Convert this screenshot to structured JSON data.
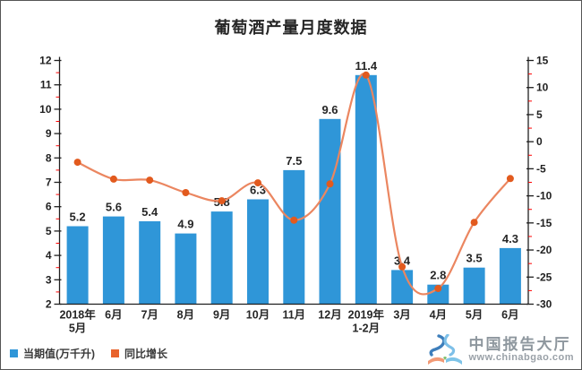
{
  "title": "葡萄酒产量月度数据",
  "colors": {
    "bar": "#2F96D8",
    "line": "#EB8660",
    "marker": "#E25A1E",
    "minor_tick": "#FF0000",
    "axis": "#1F1F1F",
    "text": "#262626",
    "legend_bar_swatch": "#2F96D8",
    "legend_line_swatch": "#E8632C"
  },
  "legend": [
    {
      "label": "当期值(万千升)",
      "color": "#2F96D8"
    },
    {
      "label": "同比增长",
      "color": "#E8632C"
    }
  ],
  "watermark": {
    "name": "中国报告大厅",
    "url": "www.chinabgao.com"
  },
  "chart_data": {
    "type": "bar+line combo",
    "title": "葡萄酒产量月度数据",
    "categories": [
      "2018年5月",
      "6月",
      "7月",
      "8月",
      "9月",
      "10月",
      "11月",
      "12月",
      "2019年1-2月",
      "3月",
      "4月",
      "5月",
      "6月"
    ],
    "category_lines": [
      [
        "2018年",
        "5月"
      ],
      [
        "6月"
      ],
      [
        "7月"
      ],
      [
        "8月"
      ],
      [
        "9月"
      ],
      [
        "10月"
      ],
      [
        "11月"
      ],
      [
        "12月"
      ],
      [
        "2019年",
        "1-2月"
      ],
      [
        "3月"
      ],
      [
        "4月"
      ],
      [
        "5月"
      ],
      [
        "6月"
      ]
    ],
    "series": [
      {
        "name": "当期值(万千升)",
        "type": "bar",
        "axis": "left",
        "values": [
          5.2,
          5.6,
          5.4,
          4.9,
          5.8,
          6.3,
          7.5,
          9.6,
          11.4,
          3.4,
          2.8,
          3.5,
          4.3
        ]
      },
      {
        "name": "同比增长",
        "type": "line",
        "axis": "right",
        "values": [
          -3.8,
          -6.9,
          -7.1,
          -9.4,
          -10.9,
          -7.6,
          -14.5,
          -7.8,
          12.3,
          -23.1,
          -27.1,
          -14.9,
          -6.8
        ]
      }
    ],
    "left_axis": {
      "min": 2,
      "max": 12,
      "step": 1,
      "minor_step": 0.5
    },
    "right_axis": {
      "min": -30,
      "max": 15,
      "step": 5,
      "minor_step": 2.5
    },
    "grid": false,
    "legend_position": "bottom-left",
    "data_labels": "bar series, one decimal"
  }
}
